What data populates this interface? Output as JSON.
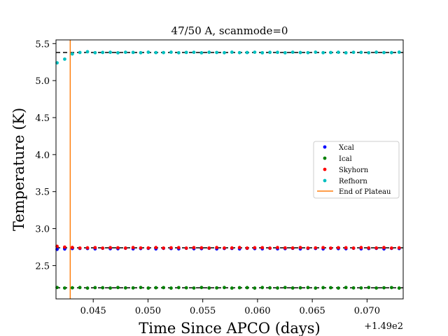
{
  "chart_data": {
    "type": "scatter",
    "title": "47/50 A, scanmode=0",
    "xlabel": "Time Since APCO (days)",
    "ylabel": "Temperature (K)",
    "x_offset_label": "+1.49e2",
    "xlim": [
      149.0416,
      149.0733
    ],
    "ylim": [
      2.05,
      5.55
    ],
    "xticks": [
      149.045,
      149.05,
      149.055,
      149.06,
      149.065,
      149.07
    ],
    "xtick_labels": [
      "0.045",
      "0.050",
      "0.055",
      "0.060",
      "0.065",
      "0.070"
    ],
    "yticks": [
      2.5,
      3.0,
      3.5,
      4.0,
      4.5,
      5.0,
      5.5
    ],
    "ytick_labels": [
      "2.5",
      "3.0",
      "3.5",
      "4.0",
      "4.5",
      "5.0",
      "5.5"
    ],
    "grid": false,
    "legend_position": "center-right",
    "x_start": 149.0417,
    "x_step": 0.000694,
    "n_points": 46,
    "series": [
      {
        "name": "Xcal",
        "color": "#0000ff",
        "level": 2.73,
        "initial": [
          2.72,
          2.725,
          2.73
        ]
      },
      {
        "name": "Ical",
        "color": "#008000",
        "level": 2.2,
        "initial": []
      },
      {
        "name": "Skyhorn",
        "color": "#ff0000",
        "level": 2.74,
        "initial": [
          2.76,
          2.75,
          2.745
        ]
      },
      {
        "name": "Refhorn",
        "color": "#00bfbf",
        "level": 5.38,
        "initial": [
          5.24,
          5.29,
          5.36,
          5.38,
          5.39
        ]
      }
    ],
    "reference_lines": [
      {
        "y": 5.38,
        "color": "#000000",
        "style": "dashed"
      },
      {
        "y": 2.74,
        "color": "#000000",
        "style": "dashed"
      },
      {
        "y": 2.2,
        "color": "#000000",
        "style": "dashed"
      }
    ],
    "vertical_line": {
      "name": "End of Plateau",
      "x": 149.0429,
      "color": "#ff7f0e"
    }
  }
}
